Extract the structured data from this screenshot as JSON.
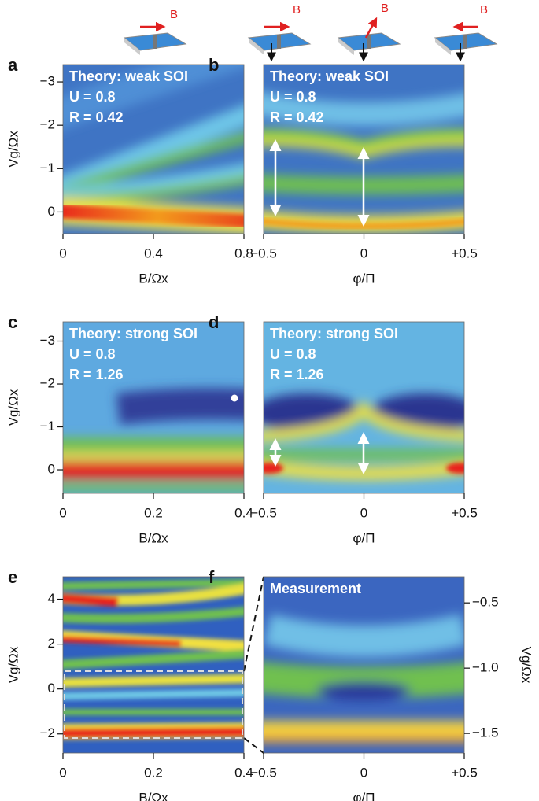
{
  "icons": [
    {
      "label": "B"
    },
    {
      "label": "B"
    },
    {
      "label": "B"
    },
    {
      "label": "B"
    }
  ],
  "chart_data": [
    {
      "type": "heatmap",
      "label": "a",
      "annotations": [
        "Theory: weak SOI",
        "U = 0.8",
        "R = 0.42"
      ],
      "xlabel": "B/Ωx",
      "ylabel": "Vg/Ωx",
      "xlim": [
        0,
        0.8
      ],
      "xticks": [
        0,
        0.4,
        0.8
      ],
      "ylim": [
        0.5,
        -3.4
      ],
      "yticks": [
        {
          "value": -3,
          "label": "−3"
        },
        {
          "value": -2,
          "label": "−2"
        },
        {
          "value": -1,
          "label": "−1"
        },
        0
      ]
    },
    {
      "type": "heatmap",
      "label": "b",
      "annotations": [
        "Theory: weak SOI",
        "U = 0.8",
        "R = 0.42"
      ],
      "xlabel": "φ/Π",
      "xlim": [
        -0.5,
        0.5
      ],
      "xticks": [
        {
          "value": -0.5,
          "label": "−0.5"
        },
        0,
        {
          "value": 0.5,
          "label": "+0.5"
        }
      ]
    },
    {
      "type": "heatmap",
      "label": "c",
      "annotations": [
        "Theory: strong SOI",
        "U = 0.8",
        "R = 1.26"
      ],
      "xlabel": "B/Ωx",
      "ylabel": "Vg/Ωx",
      "xlim": [
        0,
        0.4
      ],
      "xticks": [
        0,
        0.2,
        0.4
      ],
      "ylim": [
        0.55,
        -3.45
      ],
      "yticks": [
        {
          "value": -3,
          "label": "−3"
        },
        {
          "value": -2,
          "label": "−2"
        },
        {
          "value": -1,
          "label": "−1"
        },
        0
      ]
    },
    {
      "type": "heatmap",
      "label": "d",
      "annotations": [
        "Theory: strong SOI",
        "U = 0.8",
        "R = 1.26"
      ],
      "xlabel": "φ/Π",
      "xlim": [
        -0.5,
        0.5
      ],
      "xticks": [
        {
          "value": -0.5,
          "label": "−0.5"
        },
        0,
        {
          "value": 0.5,
          "label": "+0.5"
        }
      ]
    },
    {
      "type": "heatmap",
      "label": "e",
      "xlabel": "B/Ωx",
      "ylabel": "Vg/Ωx",
      "xlim": [
        0,
        0.4
      ],
      "xticks": [
        0,
        0.2,
        0.4
      ],
      "ylim": [
        -2.85,
        5
      ],
      "yticks": [
        4,
        2,
        0,
        {
          "value": -2,
          "label": "−2"
        }
      ]
    },
    {
      "type": "heatmap",
      "label": "f",
      "annotations": [
        "Measurement"
      ],
      "xlabel": "φ/Π",
      "ylabel": "Vg/Ωx",
      "y_axis_side": "right",
      "xlim": [
        -0.5,
        0.5
      ],
      "xticks": [
        {
          "value": -0.5,
          "label": "−0.5"
        },
        0,
        {
          "value": 0.5,
          "label": "+0.5"
        }
      ],
      "ylim": [
        -1.65,
        -0.3
      ],
      "yticks": [
        {
          "value": -0.5,
          "label": "−0.5"
        },
        {
          "value": -1.0,
          "label": "−1.0"
        },
        {
          "value": -1.5,
          "label": "−1.5"
        }
      ]
    }
  ]
}
